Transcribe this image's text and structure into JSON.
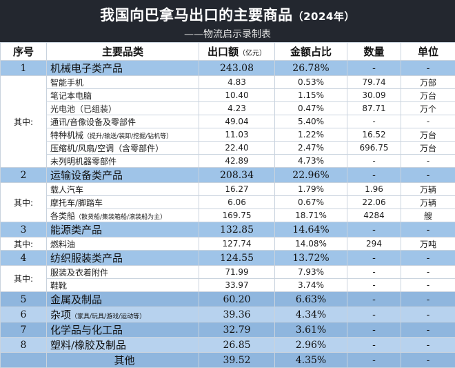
{
  "title": {
    "main": "我国向巴拿马出口的主要商品",
    "year": "（2024年）",
    "subtitle": "——物流启示录制表"
  },
  "headers": {
    "seq": "序号",
    "category": "主要品类",
    "export": "出口额",
    "export_unit": "（亿元）",
    "share": "金额占比",
    "qty": "数量",
    "unit": "单位"
  },
  "qizhong_label": "其中:",
  "colors": {
    "title_bg": "#23272f",
    "main_row": "#9fc4e8",
    "main_row_dark": "#8fb6de",
    "main_row_light": "#b7d2ee"
  },
  "groups": [
    {
      "seq": "1",
      "name": "机械电子类产品",
      "export": "243.08",
      "share": "26.78%",
      "qty": "-",
      "unit": "-",
      "shade": "",
      "subs": [
        {
          "name": "智能手机",
          "export": "4.83",
          "share": "0.53%",
          "qty": "79.74",
          "unit": "万部"
        },
        {
          "name": "笔记本电脑",
          "export": "10.40",
          "share": "1.15%",
          "qty": "30.09",
          "unit": "万台"
        },
        {
          "name": "光电池（已组装）",
          "export": "4.23",
          "share": "0.47%",
          "qty": "87.71",
          "unit": "万个"
        },
        {
          "name": "通讯/音像设备及零部件",
          "export": "49.04",
          "share": "5.40%",
          "qty": "-",
          "unit": "-"
        },
        {
          "name": "特种机械",
          "note": "（提升/输送/装卸/挖掘/钻机等）",
          "export": "11.03",
          "share": "1.22%",
          "qty": "16.52",
          "unit": "万台"
        },
        {
          "name": "压缩机/风扇/空调（含零部件）",
          "export": "22.40",
          "share": "2.47%",
          "qty": "696.75",
          "unit": "万台"
        },
        {
          "name": "未列明机器零部件",
          "export": "42.89",
          "share": "4.73%",
          "qty": "-",
          "unit": "-"
        }
      ]
    },
    {
      "seq": "2",
      "name": "运输设备类产品",
      "export": "208.34",
      "share": "22.96%",
      "qty": "-",
      "unit": "-",
      "shade": "",
      "subs": [
        {
          "name": "载人汽车",
          "export": "16.27",
          "share": "1.79%",
          "qty": "1.96",
          "unit": "万辆"
        },
        {
          "name": "摩托车/脚踏车",
          "export": "6.06",
          "share": "0.67%",
          "qty": "22.06",
          "unit": "万辆"
        },
        {
          "name": "各类船",
          "note": "（散货船/集装箱船/滚装船为主）",
          "export": "169.75",
          "share": "18.71%",
          "qty": "4284",
          "unit": "艘"
        }
      ]
    },
    {
      "seq": "3",
      "name": "能源类产品",
      "export": "132.85",
      "share": "14.64%",
      "qty": "-",
      "unit": "-",
      "shade": "",
      "subs": [
        {
          "name": "燃料油",
          "export": "127.74",
          "share": "14.08%",
          "qty": "294",
          "unit": "万吨"
        }
      ]
    },
    {
      "seq": "4",
      "name": "纺织服装类产品",
      "export": "124.55",
      "share": "13.72%",
      "qty": "-",
      "unit": "-",
      "shade": "",
      "subs": [
        {
          "name": "服装及衣着附件",
          "export": "71.99",
          "share": "7.93%",
          "qty": "-",
          "unit": "-"
        },
        {
          "name": "鞋靴",
          "export": "33.97",
          "share": "3.74%",
          "qty": "-",
          "unit": "-"
        }
      ]
    },
    {
      "seq": "5",
      "name": "金属及制品",
      "export": "60.20",
      "share": "6.63%",
      "qty": "-",
      "unit": "-",
      "shade": "dark",
      "subs": []
    },
    {
      "seq": "6",
      "name": "杂项",
      "note": "（家具/玩具/游戏/运动等）",
      "export": "39.36",
      "share": "4.34%",
      "qty": "-",
      "unit": "-",
      "shade": "light",
      "subs": []
    },
    {
      "seq": "7",
      "name": "化学品与化工品",
      "export": "32.79",
      "share": "3.61%",
      "qty": "-",
      "unit": "-",
      "shade": "dark",
      "subs": []
    },
    {
      "seq": "8",
      "name": "塑料/橡胶及制品",
      "export": "26.85",
      "share": "2.96%",
      "qty": "-",
      "unit": "-",
      "shade": "light",
      "subs": []
    },
    {
      "seq": "",
      "name": "其他",
      "export": "39.52",
      "share": "4.35%",
      "qty": "-",
      "unit": "-",
      "shade": "dark",
      "centered": true,
      "subs": []
    }
  ]
}
